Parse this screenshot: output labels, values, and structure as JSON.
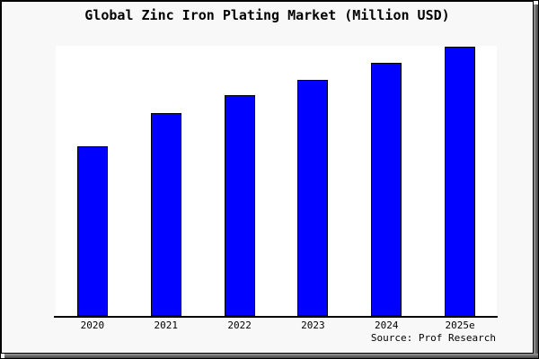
{
  "title": "Global Zinc Iron Plating Market (Million USD)",
  "source_note": "Source: Prof Research",
  "chart_data": {
    "type": "bar",
    "title": "Global Zinc Iron Plating Market (Million USD)",
    "categories": [
      "2020",
      "2021",
      "2022",
      "2023",
      "2024",
      "2025e"
    ],
    "values": [
      63,
      75.5,
      82,
      87.6,
      94,
      100
    ],
    "values_unit": "relative bar height, percent of tallest bar (2025e); chart shows no numeric y-axis",
    "xlabel": "",
    "ylabel": "",
    "y_axis_visible": false,
    "gridlines": false,
    "legend": "none",
    "annotation": "Source: Prof Research",
    "colors": {
      "bar_fill": "#0000ff",
      "bar_border": "#000000",
      "plot_background": "#ffffff",
      "canvas_background": "#f8f8f8",
      "frame": "#000000",
      "text": "#000000"
    }
  }
}
